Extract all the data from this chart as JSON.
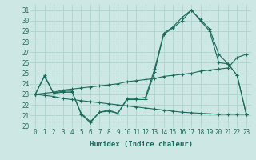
{
  "title": "",
  "xlabel": "Humidex (Indice chaleur)",
  "ylabel": "",
  "bg_color": "#cde8e4",
  "grid_color": "#b0d8d0",
  "line_color": "#1a6b5a",
  "xlim": [
    -0.5,
    23.5
  ],
  "ylim": [
    19.8,
    31.5
  ],
  "yticks": [
    20,
    21,
    22,
    23,
    24,
    25,
    26,
    27,
    28,
    29,
    30,
    31
  ],
  "xticks": [
    0,
    1,
    2,
    3,
    4,
    5,
    6,
    7,
    8,
    9,
    10,
    11,
    12,
    13,
    14,
    15,
    16,
    17,
    18,
    19,
    20,
    21,
    22,
    23
  ],
  "series_main_x": [
    0,
    1,
    2,
    3,
    4,
    5,
    6,
    7,
    8,
    9,
    10,
    11,
    12,
    13,
    14,
    15,
    16,
    17,
    18,
    19,
    20,
    21,
    22,
    23
  ],
  "series_main_y": [
    23.0,
    24.8,
    23.1,
    23.3,
    23.3,
    21.1,
    20.3,
    21.3,
    21.4,
    21.2,
    22.6,
    22.6,
    22.7,
    25.4,
    28.8,
    29.4,
    30.3,
    31.0,
    30.1,
    29.2,
    26.8,
    25.9,
    24.8,
    21.1
  ],
  "series_lower_x": [
    0,
    1,
    2,
    3,
    4,
    5,
    6,
    7,
    8,
    9,
    10,
    11,
    12,
    13,
    14,
    15,
    16,
    17,
    18,
    19,
    20,
    21,
    22,
    23
  ],
  "series_lower_y": [
    23.0,
    24.7,
    23.1,
    23.2,
    23.2,
    21.2,
    20.4,
    21.3,
    21.5,
    21.2,
    22.5,
    22.5,
    22.5,
    25.1,
    28.7,
    29.3,
    30.0,
    31.0,
    30.0,
    29.0,
    26.0,
    25.9,
    24.8,
    21.1
  ],
  "trend_up_x": [
    0,
    1,
    2,
    3,
    4,
    5,
    6,
    7,
    8,
    9,
    10,
    11,
    12,
    13,
    14,
    15,
    16,
    17,
    18,
    19,
    20,
    21,
    22,
    23
  ],
  "trend_up_y": [
    23.0,
    23.1,
    23.2,
    23.4,
    23.5,
    23.6,
    23.7,
    23.8,
    23.9,
    24.0,
    24.2,
    24.3,
    24.4,
    24.5,
    24.7,
    24.8,
    24.9,
    25.0,
    25.2,
    25.3,
    25.4,
    25.5,
    26.5,
    26.8
  ],
  "trend_down_x": [
    0,
    1,
    2,
    3,
    4,
    5,
    6,
    7,
    8,
    9,
    10,
    11,
    12,
    13,
    14,
    15,
    16,
    17,
    18,
    19,
    20,
    21,
    22,
    23
  ],
  "trend_down_y": [
    23.0,
    22.9,
    22.8,
    22.6,
    22.5,
    22.4,
    22.3,
    22.2,
    22.1,
    22.0,
    21.9,
    21.8,
    21.7,
    21.6,
    21.5,
    21.4,
    21.3,
    21.25,
    21.2,
    21.15,
    21.1,
    21.1,
    21.1,
    21.1
  ]
}
